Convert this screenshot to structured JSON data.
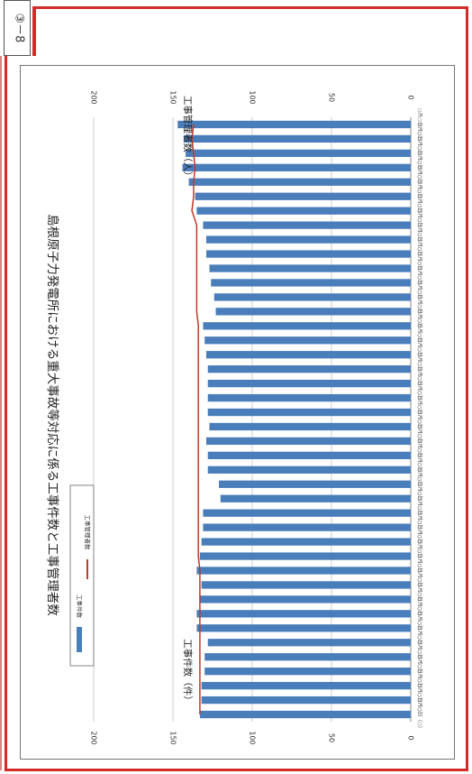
{
  "page": {
    "tab_label": "③－8"
  },
  "chart_data": {
    "type": "bar",
    "title": "島根原子力発電所における重大事故等対応に係る工事件数と工事管理者数",
    "y_left_label": "工事件数（件）",
    "y_right_label": "工事管理者数（人）",
    "ylim": [
      0,
      200
    ],
    "ticks": [
      0,
      50,
      100,
      150,
      200
    ],
    "grid": true,
    "legend_placement": "top-left",
    "legend": [
      {
        "name": "工事件数",
        "kind": "bar",
        "color": "#4a7ebb"
      },
      {
        "name": "工事管理者数",
        "kind": "line",
        "color": "#c0392b"
      }
    ],
    "category_label": "○月○日（○）",
    "series": [
      {
        "name": "工事件数",
        "type": "bar",
        "color": "#4a7ebb",
        "values": [
          147,
          143,
          142,
          144,
          140,
          136,
          135,
          131,
          129,
          129,
          127,
          126,
          124,
          123,
          131,
          130,
          129,
          128,
          128,
          128,
          128,
          127,
          129,
          128,
          128,
          121,
          120,
          131,
          131,
          132,
          133,
          135,
          132,
          133,
          135,
          135,
          128,
          130,
          130,
          132,
          132,
          133
        ]
      },
      {
        "name": "工事管理者数",
        "type": "line",
        "color": "#c0392b",
        "values": [
          137,
          138,
          137,
          136,
          137,
          137,
          138,
          135,
          135,
          135,
          135,
          135,
          135,
          135,
          134,
          134,
          134,
          134,
          134,
          134,
          134,
          134,
          134,
          134,
          134,
          134,
          134,
          134,
          134,
          134,
          134,
          133,
          133,
          133,
          133,
          133,
          133,
          133,
          133,
          133,
          133,
          133
        ]
      }
    ]
  }
}
